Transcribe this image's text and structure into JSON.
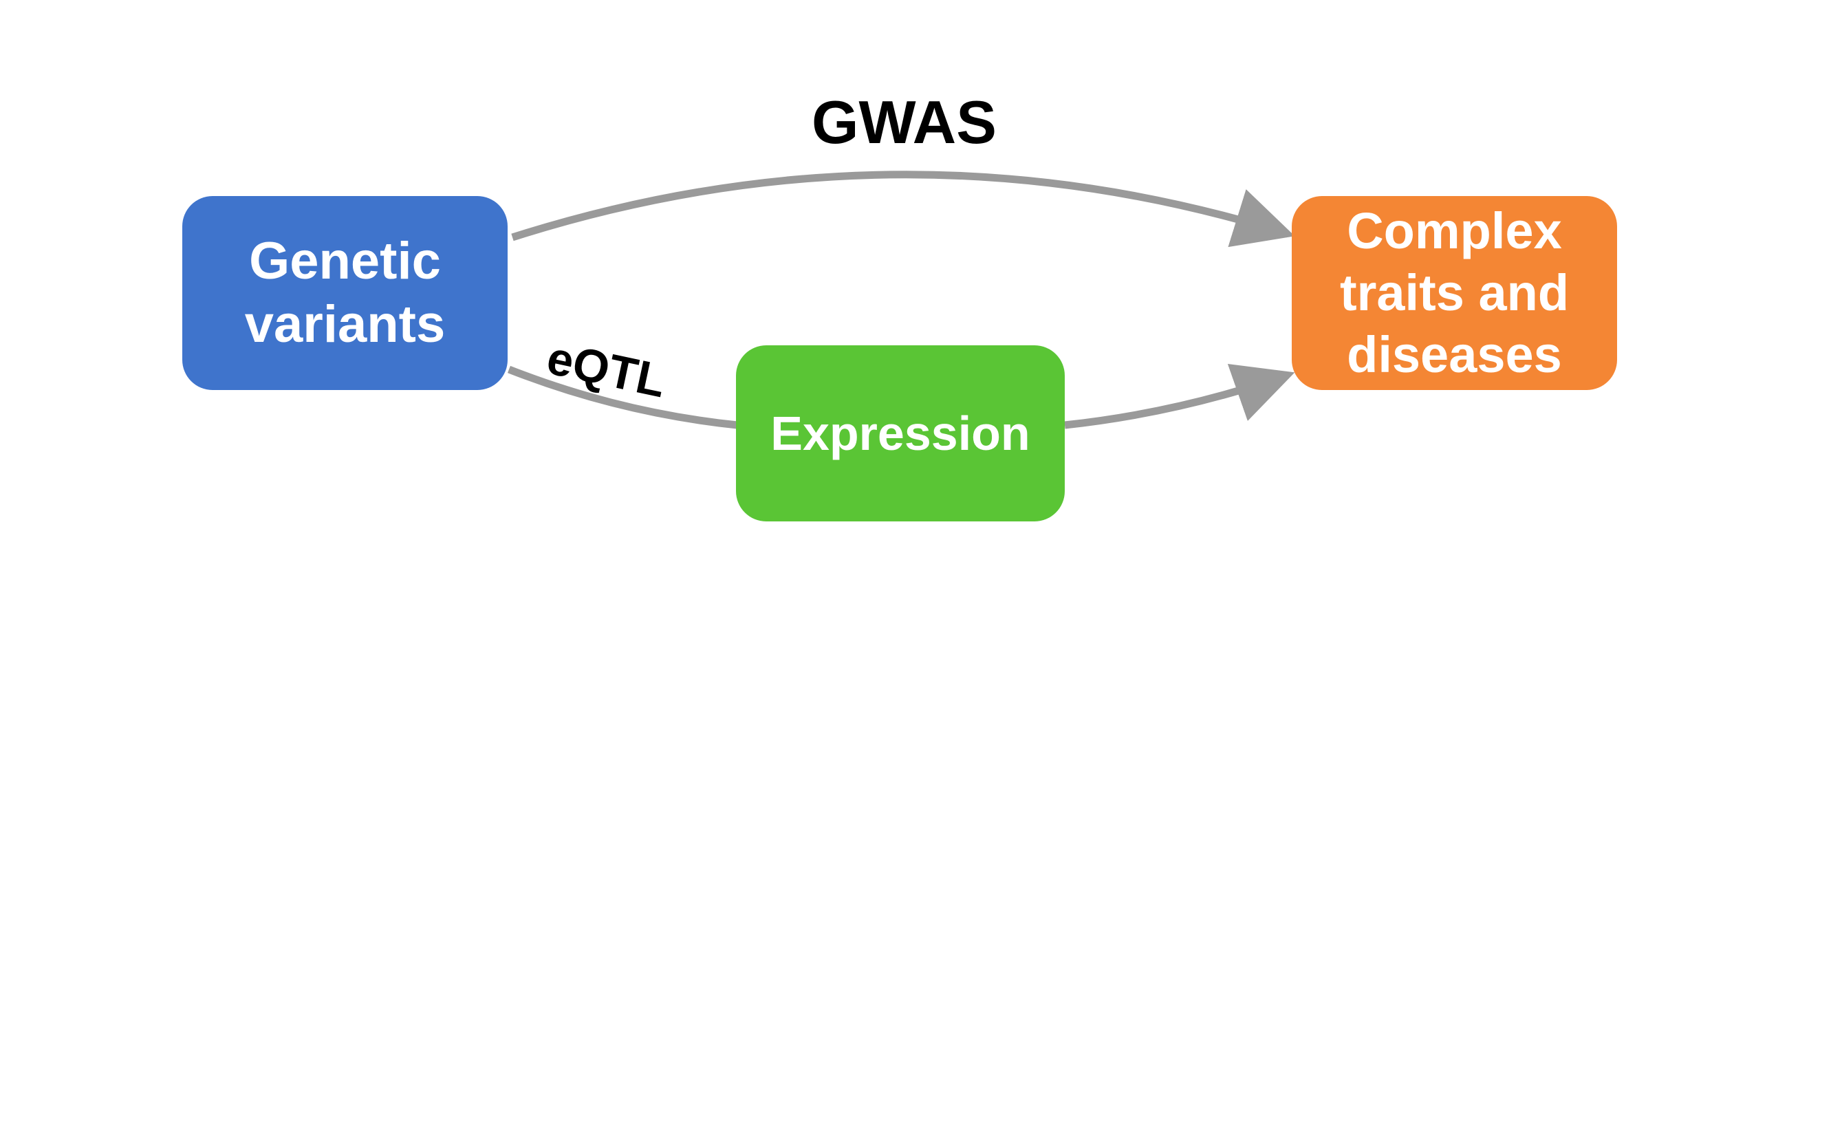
{
  "diagram": {
    "colors": {
      "genetic_variants": "#3F74CC",
      "expression": "#5AC535",
      "complex_traits": "#F48634",
      "arrow": "#9A9A9A",
      "label": "#000000",
      "node_text": "#FFFFFF"
    },
    "nodes": {
      "genetic_variants": {
        "lines": [
          "Genetic",
          "variants"
        ]
      },
      "expression": {
        "lines": [
          "Expression"
        ]
      },
      "complex_traits": {
        "lines": [
          "Complex",
          "traits and",
          "diseases"
        ]
      }
    },
    "edges": {
      "gwas": {
        "label": "GWAS",
        "from": "Genetic variants",
        "to": "Complex traits and diseases"
      },
      "eqtl": {
        "label": "eQTL",
        "from": "Genetic variants",
        "to": "Expression"
      },
      "expression_to_traits": {
        "from": "Expression",
        "to": "Complex traits and diseases"
      }
    }
  }
}
